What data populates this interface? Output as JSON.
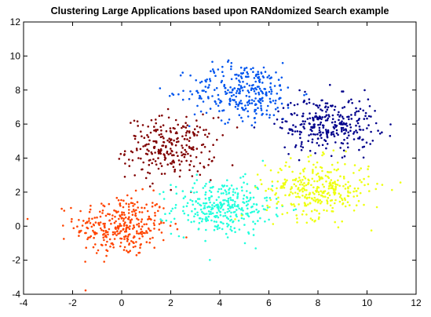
{
  "chart_data": {
    "type": "scatter",
    "title": "Clustering Large Applications based upon RANdomized Search example",
    "xlabel": "",
    "ylabel": "",
    "xlim": [
      -4,
      12
    ],
    "ylim": [
      -4,
      12
    ],
    "xticks": [
      -4,
      -2,
      0,
      2,
      4,
      6,
      8,
      10,
      12
    ],
    "yticks": [
      -4,
      -2,
      0,
      2,
      4,
      6,
      8,
      10,
      12
    ],
    "grid": false,
    "legend": "none",
    "clusters": [
      {
        "center": [
          0.0,
          0.0
        ],
        "spread": [
          0.95,
          0.9
        ],
        "count": 320,
        "color": "#ff4400"
      },
      {
        "center": [
          2.0,
          4.6
        ],
        "spread": [
          0.9,
          0.9
        ],
        "count": 260,
        "color": "#800000"
      },
      {
        "center": [
          4.1,
          1.1
        ],
        "spread": [
          1.0,
          0.8
        ],
        "count": 330,
        "color": "#22ffdd"
      },
      {
        "center": [
          5.0,
          7.9
        ],
        "spread": [
          1.1,
          0.85
        ],
        "count": 300,
        "color": "#0055ee"
      },
      {
        "center": [
          8.0,
          2.2
        ],
        "spread": [
          1.05,
          0.85
        ],
        "count": 330,
        "color": "#eeff11"
      },
      {
        "center": [
          8.4,
          6.0
        ],
        "spread": [
          1.0,
          0.8
        ],
        "count": 300,
        "color": "#00008b"
      }
    ]
  }
}
